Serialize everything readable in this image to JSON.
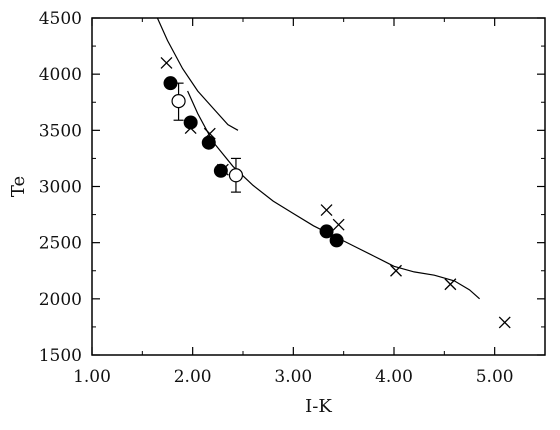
{
  "chart_data": {
    "type": "scatter",
    "xlabel": "I-K",
    "ylabel": "Te",
    "xlim": [
      1.0,
      5.5
    ],
    "ylim": [
      1500,
      4500
    ],
    "xticks": [
      1.0,
      2.0,
      3.0,
      4.0,
      5.0
    ],
    "xtick_labels": [
      "1.00",
      "2.00",
      "3.00",
      "4.00",
      "5.00"
    ],
    "yticks": [
      1500,
      2000,
      2500,
      3000,
      3500,
      4000,
      4500
    ],
    "ytick_labels": [
      "1500",
      "2000",
      "2500",
      "3000",
      "3500",
      "4000",
      "4500"
    ],
    "grid": false,
    "legend": "none",
    "series": [
      {
        "marker": "filled-circle",
        "points": [
          [
            1.78,
            3920
          ],
          [
            1.98,
            3570
          ],
          [
            2.16,
            3390
          ],
          [
            2.28,
            3140
          ],
          [
            3.33,
            2600
          ],
          [
            3.43,
            2520
          ]
        ]
      },
      {
        "marker": "open-circle",
        "points": [
          [
            1.86,
            3760
          ],
          [
            2.43,
            3100
          ]
        ],
        "error_bars": [
          [
            3590,
            3920
          ],
          [
            2950,
            3250
          ]
        ]
      },
      {
        "marker": "cross",
        "points": [
          [
            1.74,
            4100
          ],
          [
            1.98,
            3520
          ],
          [
            2.17,
            3470
          ],
          [
            2.3,
            3150
          ],
          [
            3.33,
            2790
          ],
          [
            3.45,
            2660
          ],
          [
            4.02,
            2250
          ],
          [
            4.56,
            2130
          ],
          [
            5.1,
            1790
          ]
        ]
      },
      {
        "marker": "line",
        "points": [
          [
            1.95,
            3850
          ],
          [
            2.05,
            3650
          ],
          [
            2.2,
            3400
          ],
          [
            2.4,
            3180
          ],
          [
            2.6,
            3010
          ],
          [
            2.8,
            2870
          ],
          [
            3.0,
            2760
          ],
          [
            3.2,
            2650
          ],
          [
            3.4,
            2560
          ],
          [
            3.6,
            2470
          ],
          [
            3.8,
            2380
          ],
          [
            4.0,
            2290
          ],
          [
            4.2,
            2240
          ],
          [
            4.4,
            2210
          ],
          [
            4.6,
            2160
          ],
          [
            4.75,
            2080
          ],
          [
            4.85,
            2000
          ]
        ]
      },
      {
        "marker": "line",
        "points": [
          [
            1.65,
            4500
          ],
          [
            1.75,
            4300
          ],
          [
            1.9,
            4050
          ],
          [
            2.05,
            3850
          ],
          [
            2.2,
            3700
          ],
          [
            2.35,
            3550
          ],
          [
            2.45,
            3500
          ]
        ]
      }
    ]
  }
}
